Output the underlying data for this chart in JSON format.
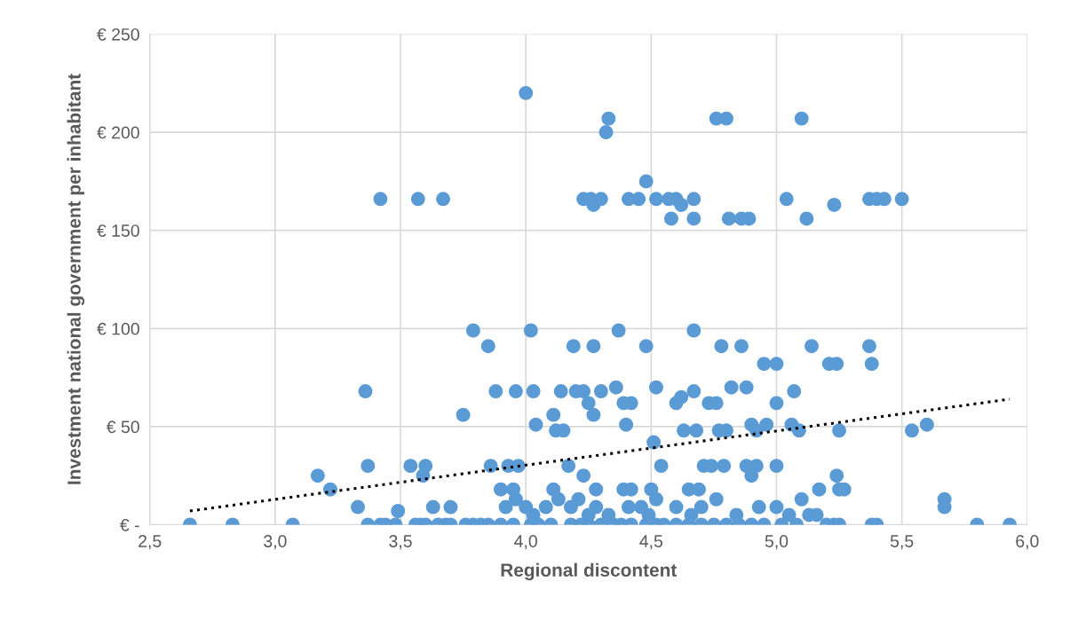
{
  "chart_data": {
    "type": "scatter",
    "xlabel": "Regional discontent",
    "ylabel": "Investment national government per inhabitant",
    "xlim": [
      2.5,
      6.0
    ],
    "xticks": [
      {
        "value": 2.5,
        "label": "2,5"
      },
      {
        "value": 3.0,
        "label": "3,0"
      },
      {
        "value": 3.5,
        "label": "3,5"
      },
      {
        "value": 4.0,
        "label": "4,0"
      },
      {
        "value": 4.5,
        "label": "4,5"
      },
      {
        "value": 5.0,
        "label": "5,0"
      },
      {
        "value": 5.5,
        "label": "5,5"
      },
      {
        "value": 6.0,
        "label": "6,0"
      }
    ],
    "ylim": [
      0,
      250
    ],
    "yticks": [
      {
        "value": 0,
        "label": "€ -"
      },
      {
        "value": 50,
        "label": "€ 50"
      },
      {
        "value": 100,
        "label": "€ 100"
      },
      {
        "value": 150,
        "label": "€ 150"
      },
      {
        "value": 200,
        "label": "€ 200"
      },
      {
        "value": 250,
        "label": "€ 250"
      }
    ],
    "grid": true,
    "series": [
      {
        "color": "#5b9bd5",
        "marker": "circle",
        "x": [
          2.66,
          2.83,
          3.07,
          3.37,
          3.42,
          3.44,
          3.48,
          3.56,
          3.58,
          3.6,
          3.65,
          3.68,
          3.7,
          3.76,
          3.79,
          3.82,
          3.85,
          3.9,
          3.95,
          4.02,
          4.05,
          4.1,
          4.18,
          4.22,
          4.25,
          4.3,
          4.35,
          4.38,
          4.42,
          4.48,
          4.52,
          4.55,
          4.6,
          4.65,
          4.7,
          4.75,
          4.8,
          4.85,
          4.9,
          4.95,
          5.02,
          5.08,
          5.2,
          5.23,
          5.25,
          5.38,
          5.4,
          5.8,
          5.93,
          4.0,
          4.33,
          4.32,
          4.76,
          4.8,
          5.1,
          3.42,
          3.57,
          3.67,
          4.23,
          4.26,
          4.3,
          4.27,
          4.41,
          4.45,
          4.48,
          4.52,
          4.57,
          4.6,
          4.62,
          4.67,
          4.58,
          4.67,
          4.81,
          4.86,
          4.89,
          5.04,
          5.12,
          5.23,
          5.37,
          5.4,
          5.43,
          5.5,
          3.79,
          3.85,
          4.02,
          4.19,
          4.27,
          4.37,
          4.48,
          4.67,
          4.78,
          4.86,
          4.95,
          5.0,
          5.14,
          5.21,
          5.24,
          5.37,
          5.38,
          3.36,
          3.75,
          3.88,
          3.96,
          4.03,
          4.04,
          4.11,
          4.14,
          4.2,
          4.23,
          4.12,
          4.15,
          4.25,
          4.27,
          4.3,
          4.36,
          4.39,
          4.4,
          4.42,
          4.52,
          4.51,
          4.6,
          4.62,
          4.63,
          4.67,
          4.68,
          4.73,
          4.76,
          4.77,
          4.8,
          4.82,
          4.88,
          4.9,
          4.92,
          4.96,
          5.0,
          5.06,
          5.07,
          5.09,
          5.25,
          5.54,
          5.6,
          3.17,
          3.22,
          3.37,
          3.54,
          3.59,
          3.6,
          3.86,
          3.93,
          3.97,
          3.9,
          3.95,
          4.11,
          4.17,
          4.23,
          4.28,
          4.39,
          4.42,
          4.5,
          4.54,
          4.65,
          4.69,
          4.71,
          4.74,
          4.79,
          4.88,
          4.92,
          4.9,
          5.0,
          5.17,
          5.24,
          5.25,
          5.27,
          3.33,
          3.49,
          3.63,
          3.7,
          3.92,
          3.96,
          4.0,
          4.03,
          4.08,
          4.13,
          4.18,
          4.21,
          4.25,
          4.28,
          4.33,
          4.41,
          4.46,
          4.49,
          4.52,
          4.6,
          4.66,
          4.7,
          4.76,
          4.84,
          4.93,
          5.0,
          5.05,
          5.1,
          5.13,
          5.16,
          5.67,
          5.67
        ],
        "values": [
          0,
          0,
          0,
          0,
          0,
          0,
          0,
          0,
          0,
          0,
          0,
          0,
          0,
          0,
          0,
          0,
          0,
          0,
          0,
          0,
          0,
          0,
          0,
          0,
          0,
          0,
          0,
          0,
          0,
          0,
          0,
          0,
          0,
          0,
          0,
          0,
          0,
          0,
          0,
          0,
          0,
          0,
          0,
          0,
          0,
          0,
          0,
          0,
          0,
          220,
          207,
          200,
          207,
          207,
          207,
          166,
          166,
          166,
          166,
          166,
          166,
          163,
          166,
          166,
          175,
          166,
          166,
          166,
          163,
          166,
          156,
          156,
          156,
          156,
          156,
          166,
          156,
          163,
          166,
          166,
          166,
          166,
          99,
          91,
          99,
          91,
          91,
          99,
          91,
          99,
          91,
          91,
          82,
          82,
          91,
          82,
          82,
          91,
          82,
          68,
          56,
          68,
          68,
          68,
          51,
          56,
          68,
          68,
          68,
          48,
          48,
          62,
          56,
          68,
          70,
          62,
          51,
          62,
          70,
          42,
          62,
          65,
          48,
          68,
          48,
          62,
          62,
          48,
          48,
          70,
          70,
          51,
          48,
          51,
          62,
          51,
          68,
          48,
          48,
          48,
          51,
          25,
          18,
          30,
          30,
          25,
          30,
          30,
          30,
          30,
          18,
          18,
          18,
          30,
          25,
          18,
          18,
          18,
          18,
          30,
          18,
          18,
          30,
          30,
          30,
          30,
          30,
          25,
          30,
          18,
          25,
          18,
          18,
          9,
          7,
          9,
          9,
          9,
          13,
          9,
          5,
          9,
          13,
          9,
          13,
          5,
          9,
          5,
          9,
          9,
          5,
          13,
          9,
          5,
          9,
          13,
          5,
          9,
          9,
          5,
          13,
          5,
          5,
          13,
          9
        ]
      },
      {
        "type": "line",
        "color": "#000000",
        "line_style": "dotted",
        "marker": "none",
        "x": [
          2.66,
          5.93
        ],
        "values": [
          7,
          64
        ]
      }
    ]
  }
}
